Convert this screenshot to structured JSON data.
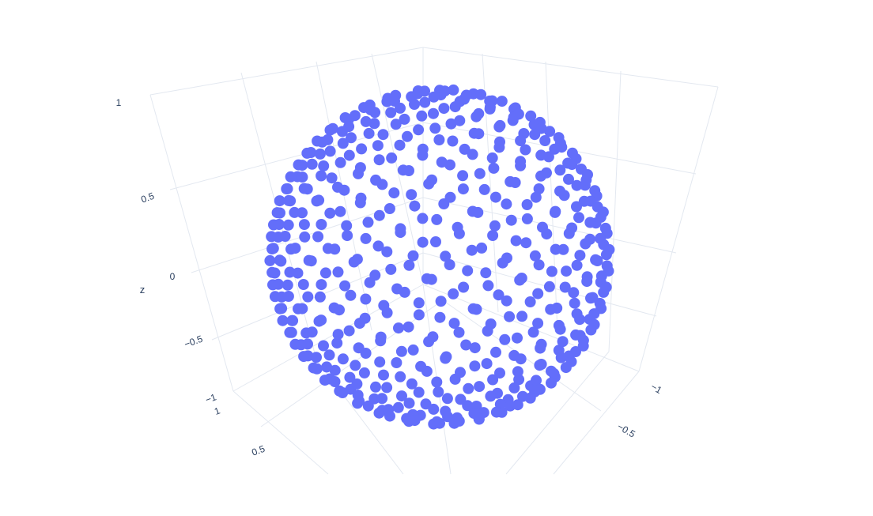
{
  "chart_data": {
    "type": "scatter3d",
    "title": "",
    "marker": {
      "color": "#636efa",
      "symbol": "circle"
    },
    "axes": {
      "x": {
        "label": "",
        "range": [
          -1,
          1
        ],
        "ticks": [
          "−1",
          "−0.5"
        ]
      },
      "y": {
        "label": "",
        "range": [
          -1,
          1
        ],
        "ticks": [
          "1",
          "0.5"
        ]
      },
      "z": {
        "label": "z",
        "range": [
          -1,
          1
        ],
        "ticks": [
          "1",
          "0.5",
          "0",
          "−0.5",
          "−1"
        ]
      }
    },
    "grid": true,
    "background": "#ffffff",
    "gridcolor": "#e3e8f0",
    "description_of_points": "approx. 500 points distributed roughly uniformly on the surface of the unit sphere (x²+y²+z²=1)",
    "n_points": 500,
    "radius": 1
  }
}
